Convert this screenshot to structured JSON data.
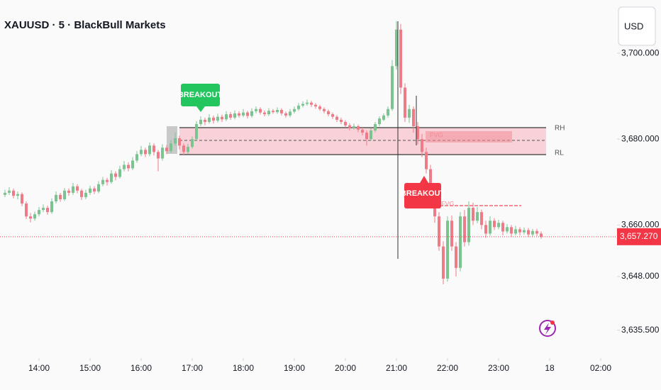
{
  "chart_data": {
    "type": "candlestick",
    "title": "XAUUSD · 5 · BlackBull Markets",
    "currency": "USD",
    "up_color": "#7cc48f",
    "down_color": "#ef7b86",
    "ylim": [
      3629,
      3712.4
    ],
    "yticks": [
      {
        "value": 3700,
        "label": "3,700.000"
      },
      {
        "value": 3680,
        "label": "3,680.000"
      },
      {
        "value": 3660,
        "label": "3,660.000"
      },
      {
        "value": 3648,
        "label": "3,648.000"
      },
      {
        "value": 3635.5,
        "label": "3,635.500"
      }
    ],
    "xticks": [
      {
        "value": "14:00",
        "label": "14:00"
      },
      {
        "value": "15:00",
        "label": "15:00"
      },
      {
        "value": "16:00",
        "label": "16:00"
      },
      {
        "value": "17:00",
        "label": "17:00"
      },
      {
        "value": "18:00",
        "label": "18:00"
      },
      {
        "value": "19:00",
        "label": "19:00"
      },
      {
        "value": "20:00",
        "label": "20:00"
      },
      {
        "value": "21:00",
        "label": "21:00"
      },
      {
        "value": "22:00",
        "label": "22:00"
      },
      {
        "value": "23:00",
        "label": "23:00"
      },
      {
        "value": "24:00",
        "label": "18"
      },
      {
        "value": "25:00",
        "label": "02:00"
      }
    ],
    "last_price": {
      "value": 3657.27,
      "label": "3,657.270"
    },
    "annotations": [
      "BREAKOUT",
      "BREAKOUT",
      "RH",
      "RL",
      "FVG",
      "FVG"
    ],
    "x": [
      "13:20",
      "13:25",
      "13:30",
      "13:35",
      "13:40",
      "13:45",
      "13:50",
      "13:55",
      "14:00",
      "14:05",
      "14:10",
      "14:15",
      "14:20",
      "14:25",
      "14:30",
      "14:35",
      "14:40",
      "14:45",
      "14:50",
      "14:55",
      "15:00",
      "15:05",
      "15:10",
      "15:15",
      "15:20",
      "15:25",
      "15:30",
      "15:35",
      "15:40",
      "15:45",
      "15:50",
      "15:55",
      "16:00",
      "16:05",
      "16:10",
      "16:15",
      "16:20",
      "16:25",
      "16:30",
      "16:35",
      "16:40",
      "16:45",
      "16:50",
      "16:55",
      "17:00",
      "17:05",
      "17:10",
      "17:15",
      "17:20",
      "17:25",
      "17:30",
      "17:35",
      "17:40",
      "17:45",
      "17:50",
      "17:55",
      "18:00",
      "18:05",
      "18:10",
      "18:15",
      "18:20",
      "18:25",
      "18:30",
      "18:35",
      "18:40",
      "18:45",
      "18:50",
      "18:55",
      "19:00",
      "19:05",
      "19:10",
      "19:15",
      "19:20",
      "19:25",
      "19:30",
      "19:35",
      "19:40",
      "19:45",
      "19:50",
      "19:55",
      "20:00",
      "20:05",
      "20:10",
      "20:15",
      "20:20",
      "20:25",
      "20:30",
      "20:35",
      "20:40",
      "20:45",
      "20:50",
      "20:55",
      "21:00",
      "21:05",
      "21:10",
      "21:15",
      "21:20",
      "21:25",
      "21:30",
      "21:35",
      "21:40",
      "21:45",
      "21:50",
      "21:55",
      "22:00",
      "22:05",
      "22:10",
      "22:15",
      "22:20",
      "22:25",
      "22:30",
      "22:35",
      "22:40",
      "22:45",
      "22:50",
      "22:55",
      "23:00",
      "23:05",
      "23:10",
      "23:15",
      "23:20",
      "23:25",
      "23:30",
      "23:35",
      "23:40",
      "23:45",
      "23:50"
    ],
    "values": [
      [
        3667,
        3668.2,
        3666.5,
        3667.5
      ],
      [
        3667.5,
        3668.8,
        3667,
        3668
      ],
      [
        3668,
        3668.5,
        3666.2,
        3666.8
      ],
      [
        3666.8,
        3667.8,
        3666,
        3667.2
      ],
      [
        3667.2,
        3667.6,
        3664.4,
        3665
      ],
      [
        3665,
        3665.5,
        3661.4,
        3662
      ],
      [
        3662,
        3662.8,
        3660.6,
        3661.5
      ],
      [
        3661.5,
        3663.1,
        3661,
        3662.5
      ],
      [
        3662.5,
        3664.2,
        3662,
        3663.5
      ],
      [
        3663.5,
        3664.8,
        3663,
        3664
      ],
      [
        3664,
        3664.5,
        3662.4,
        3663
      ],
      [
        3663,
        3666.2,
        3662.6,
        3665.5
      ],
      [
        3665.5,
        3667.8,
        3665,
        3667
      ],
      [
        3667,
        3667.5,
        3665.4,
        3666
      ],
      [
        3666,
        3668.6,
        3665.6,
        3668
      ],
      [
        3668,
        3668.5,
        3666.8,
        3667.5
      ],
      [
        3667.5,
        3669.8,
        3667,
        3669
      ],
      [
        3669,
        3669.5,
        3667.4,
        3668
      ],
      [
        3668,
        3668.4,
        3665.8,
        3666.5
      ],
      [
        3666.5,
        3668.2,
        3666,
        3667.5
      ],
      [
        3667.5,
        3669.2,
        3667,
        3668.5
      ],
      [
        3668.5,
        3669,
        3667.2,
        3667.8
      ],
      [
        3667.8,
        3670.2,
        3667.4,
        3669.5
      ],
      [
        3669.5,
        3671.2,
        3669,
        3670.5
      ],
      [
        3670.5,
        3671,
        3669.2,
        3670
      ],
      [
        3670,
        3672.8,
        3669.6,
        3672
      ],
      [
        3672,
        3672.5,
        3670.4,
        3671.2
      ],
      [
        3671.2,
        3673.8,
        3670.8,
        3673
      ],
      [
        3673,
        3674.9,
        3672.5,
        3674
      ],
      [
        3674,
        3674.6,
        3672.5,
        3673.2
      ],
      [
        3673.2,
        3675.8,
        3672.8,
        3675
      ],
      [
        3675,
        3677.2,
        3674.5,
        3676.5
      ],
      [
        3676.5,
        3678.4,
        3676,
        3677.5
      ],
      [
        3677.5,
        3678,
        3675.8,
        3676.5
      ],
      [
        3676.5,
        3679.2,
        3676,
        3678.5
      ],
      [
        3678.5,
        3679,
        3676.2,
        3677
      ],
      [
        3677,
        3677.5,
        3672.5,
        3675.5
      ],
      [
        3675.5,
        3678.8,
        3675,
        3678
      ],
      [
        3678,
        3678.6,
        3676.5,
        3677.2
      ],
      [
        3677.2,
        3679.8,
        3676.8,
        3679
      ],
      [
        3679,
        3681.5,
        3678.5,
        3680.2
      ],
      [
        3680.2,
        3680.8,
        3677.6,
        3678.5
      ],
      [
        3678.5,
        3679,
        3676.2,
        3677
      ],
      [
        3677,
        3678.9,
        3676.5,
        3678.2
      ],
      [
        3678.2,
        3680.6,
        3677.8,
        3680
      ],
      [
        3680,
        3684.2,
        3679.5,
        3683.5
      ],
      [
        3683.5,
        3685.3,
        3683,
        3684.5
      ],
      [
        3684.5,
        3685,
        3683.2,
        3684
      ],
      [
        3684,
        3685.8,
        3683.6,
        3685
      ],
      [
        3685,
        3685.5,
        3683.6,
        3684.3
      ],
      [
        3684.3,
        3685.9,
        3683.9,
        3685.2
      ],
      [
        3685.2,
        3685.7,
        3684,
        3684.6
      ],
      [
        3684.6,
        3686.5,
        3684.2,
        3685.8
      ],
      [
        3685.8,
        3686.3,
        3684.5,
        3685
      ],
      [
        3685,
        3686.7,
        3684.6,
        3686
      ],
      [
        3686,
        3686.5,
        3685,
        3685.5
      ],
      [
        3685.5,
        3687,
        3685.1,
        3686.2
      ],
      [
        3686.2,
        3686.6,
        3684.8,
        3685.4
      ],
      [
        3685.4,
        3687.2,
        3685,
        3686.5
      ],
      [
        3686.5,
        3687.6,
        3686,
        3687
      ],
      [
        3687,
        3687.4,
        3685.7,
        3686.2
      ],
      [
        3686.2,
        3686.7,
        3685.3,
        3685.8
      ],
      [
        3685.8,
        3687.2,
        3685.4,
        3686.6
      ],
      [
        3686.6,
        3687,
        3685.9,
        3686.3
      ],
      [
        3686.3,
        3687.4,
        3685.9,
        3686.8
      ],
      [
        3686.8,
        3687.2,
        3685.5,
        3686
      ],
      [
        3686,
        3686.4,
        3685,
        3685.5
      ],
      [
        3685.5,
        3687,
        3685.1,
        3686.4
      ],
      [
        3686.4,
        3687.6,
        3686,
        3687
      ],
      [
        3687,
        3688.4,
        3686.6,
        3687.8
      ],
      [
        3687.8,
        3688.8,
        3687.4,
        3688.2
      ],
      [
        3688.2,
        3689.2,
        3687.8,
        3688.5
      ],
      [
        3688.5,
        3688.9,
        3687.5,
        3688
      ],
      [
        3688,
        3688.4,
        3687.1,
        3687.6
      ],
      [
        3687.6,
        3688,
        3686.6,
        3687
      ],
      [
        3687,
        3687.4,
        3686,
        3686.5
      ],
      [
        3686.5,
        3686.9,
        3685.3,
        3685.8
      ],
      [
        3685.8,
        3686.2,
        3684.7,
        3685.2
      ],
      [
        3685.2,
        3685.6,
        3684,
        3684.5
      ],
      [
        3684.5,
        3685,
        3683.5,
        3684
      ],
      [
        3684,
        3684.4,
        3682.7,
        3683.2
      ],
      [
        3683.2,
        3683.7,
        3682,
        3682.6
      ],
      [
        3682.6,
        3683.6,
        3682.2,
        3683
      ],
      [
        3683,
        3683.4,
        3681.6,
        3682.2
      ],
      [
        3682.2,
        3682.7,
        3680.9,
        3681.5
      ],
      [
        3681.5,
        3682,
        3678.5,
        3680
      ],
      [
        3680,
        3682.6,
        3679.6,
        3682
      ],
      [
        3682,
        3684,
        3681.6,
        3683.5
      ],
      [
        3683.5,
        3685.3,
        3683,
        3684.8
      ],
      [
        3684.5,
        3686,
        3684.2,
        3685.5
      ],
      [
        3685.5,
        3687.6,
        3685,
        3687
      ],
      [
        3687,
        3698.4,
        3686.6,
        3697
      ],
      [
        3697,
        3707.5,
        3696.2,
        3705.5
      ],
      [
        3705.5,
        3706.8,
        3690.5,
        3692
      ],
      [
        3692,
        3693,
        3684,
        3685
      ],
      [
        3685,
        3688,
        3683.8,
        3687
      ],
      [
        3687,
        3687.6,
        3681.5,
        3683
      ],
      [
        3683,
        3684,
        3678.8,
        3680
      ],
      [
        3680,
        3681.2,
        3675.8,
        3677
      ],
      [
        3677,
        3678,
        3672,
        3673
      ],
      [
        3673,
        3674,
        3664,
        3665
      ],
      [
        3665,
        3667,
        3660.5,
        3662
      ],
      [
        3662,
        3663,
        3654,
        3655
      ],
      [
        3655,
        3656.2,
        3646.2,
        3647.5
      ],
      [
        3647.5,
        3662,
        3646.8,
        3661
      ],
      [
        3661,
        3662.2,
        3654,
        3655
      ],
      [
        3655,
        3656,
        3648,
        3650
      ],
      [
        3650,
        3663,
        3649.2,
        3662
      ],
      [
        3662,
        3663.5,
        3655,
        3656
      ],
      [
        3656,
        3665.5,
        3655.2,
        3664
      ],
      [
        3664,
        3665.2,
        3660,
        3661
      ],
      [
        3661,
        3664.2,
        3660.4,
        3663
      ],
      [
        3663,
        3663.6,
        3659,
        3660
      ],
      [
        3660,
        3661,
        3657,
        3658
      ],
      [
        3658,
        3662,
        3657.5,
        3661
      ],
      [
        3661,
        3661.6,
        3658.8,
        3659.5
      ],
      [
        3659.5,
        3661.2,
        3659,
        3660.5
      ],
      [
        3660.5,
        3661,
        3657.6,
        3658.5
      ],
      [
        3658.5,
        3660.2,
        3658,
        3659.5
      ],
      [
        3659.5,
        3660,
        3657.2,
        3658
      ],
      [
        3658,
        3659.8,
        3657.6,
        3659
      ],
      [
        3659,
        3659.5,
        3657.6,
        3658.3
      ],
      [
        3658.3,
        3659.4,
        3657.8,
        3658.8
      ],
      [
        3658.8,
        3659.3,
        3657.2,
        3657.8
      ],
      [
        3657.8,
        3659.1,
        3657.3,
        3658.6
      ],
      [
        3658.6,
        3659.1,
        3657.4,
        3658
      ],
      [
        3658,
        3658.5,
        3656.8,
        3657.27
      ]
    ]
  }
}
